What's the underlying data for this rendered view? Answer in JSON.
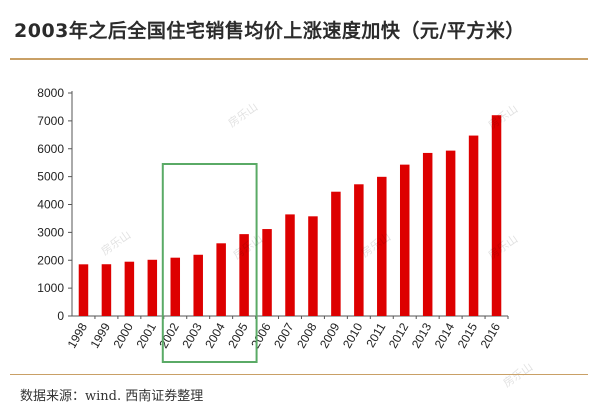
{
  "title": "2003年之后全国住宅销售均价上涨速度加快（元/平方米）",
  "source": "数据来源：wind. 西南证券整理",
  "watermark": "房乐山",
  "colors": {
    "bar": "#dd0000",
    "highlight_box": "#5aaa66",
    "rule": "#c9a066",
    "axis": "#555555",
    "text": "#222222"
  },
  "chart_data": {
    "type": "bar",
    "categories": [
      "1998",
      "1999",
      "2000",
      "2001",
      "2002",
      "2003",
      "2004",
      "2005",
      "2006",
      "2007",
      "2008",
      "2009",
      "2010",
      "2011",
      "2012",
      "2013",
      "2014",
      "2015",
      "2016"
    ],
    "values": [
      1854,
      1857,
      1948,
      2017,
      2092,
      2197,
      2608,
      2937,
      3119,
      3645,
      3576,
      4459,
      4725,
      4993,
      5430,
      5850,
      5933,
      6473,
      7203
    ],
    "ylim": [
      0,
      8000
    ],
    "yticks": [
      0,
      1000,
      2000,
      3000,
      4000,
      5000,
      6000,
      7000,
      8000
    ],
    "highlight": [
      "2002",
      "2005"
    ],
    "grid": false,
    "legend": "none"
  }
}
